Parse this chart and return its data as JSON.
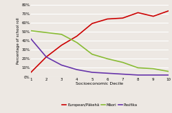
{
  "x": [
    1,
    2,
    3,
    4,
    5,
    6,
    7,
    8,
    9,
    10
  ],
  "european": [
    5,
    22,
    35,
    45,
    59,
    64,
    65,
    71,
    67,
    73
  ],
  "maori": [
    51,
    49,
    47,
    38,
    25,
    20,
    16,
    10,
    9,
    6
  ],
  "pasifika": [
    42,
    22,
    13,
    8,
    5,
    4,
    3,
    2,
    2,
    2
  ],
  "european_color": "#cc0000",
  "maori_color": "#88bb33",
  "pasifika_color": "#6633aa",
  "xlabel": "Socioeconomic Decile",
  "ylabel": "Percentage of school roll",
  "ylim": [
    0,
    80
  ],
  "yticks": [
    0,
    10,
    20,
    30,
    40,
    50,
    60,
    70,
    80
  ],
  "xlim": [
    1,
    10
  ],
  "xticks": [
    1,
    2,
    3,
    4,
    5,
    6,
    7,
    8,
    9,
    10
  ],
  "legend_labels": [
    "European/Pākehā",
    "Māori",
    "Pasifika"
  ],
  "bg_color": "#ede8e3",
  "grid_color": "#ffffff",
  "line_width": 1.2
}
